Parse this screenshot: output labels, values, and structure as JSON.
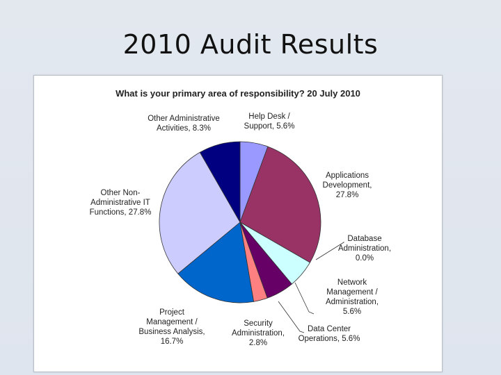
{
  "slide": {
    "title": "2010 Audit Results"
  },
  "chart_data": {
    "type": "pie",
    "title": "What is your primary area of responsibility? 20 July 2010",
    "slices": [
      {
        "label": [
          "Help Desk /",
          "Support, 5.6%"
        ],
        "value": 5.6,
        "color": "#9999ff"
      },
      {
        "label": [
          "Applications",
          "Development,",
          "27.8%"
        ],
        "value": 27.8,
        "color": "#993366"
      },
      {
        "label": [
          "Database",
          "Administration,",
          "0.0%"
        ],
        "value": 0.0,
        "color": "#993366"
      },
      {
        "label": [
          "Network",
          "Management /",
          "Administration,",
          "5.6%"
        ],
        "value": 5.6,
        "color": "#ccffff"
      },
      {
        "label": [
          "Data Center",
          "Operations, 5.6%"
        ],
        "value": 5.6,
        "color": "#660066"
      },
      {
        "label": [
          "Security",
          "Administration,",
          "2.8%"
        ],
        "value": 2.8,
        "color": "#ff8080"
      },
      {
        "label": [
          "Project",
          "Management /",
          "Business Analysis,",
          "16.7%"
        ],
        "value": 16.7,
        "color": "#0066cc"
      },
      {
        "label": [
          "Other Non-",
          "Administrative IT",
          "Functions, 27.8%"
        ],
        "value": 27.8,
        "color": "#ccccff"
      },
      {
        "label": [
          "Other Administrative",
          "Activities, 8.3%"
        ],
        "value": 8.3,
        "color": "#000080"
      }
    ]
  }
}
